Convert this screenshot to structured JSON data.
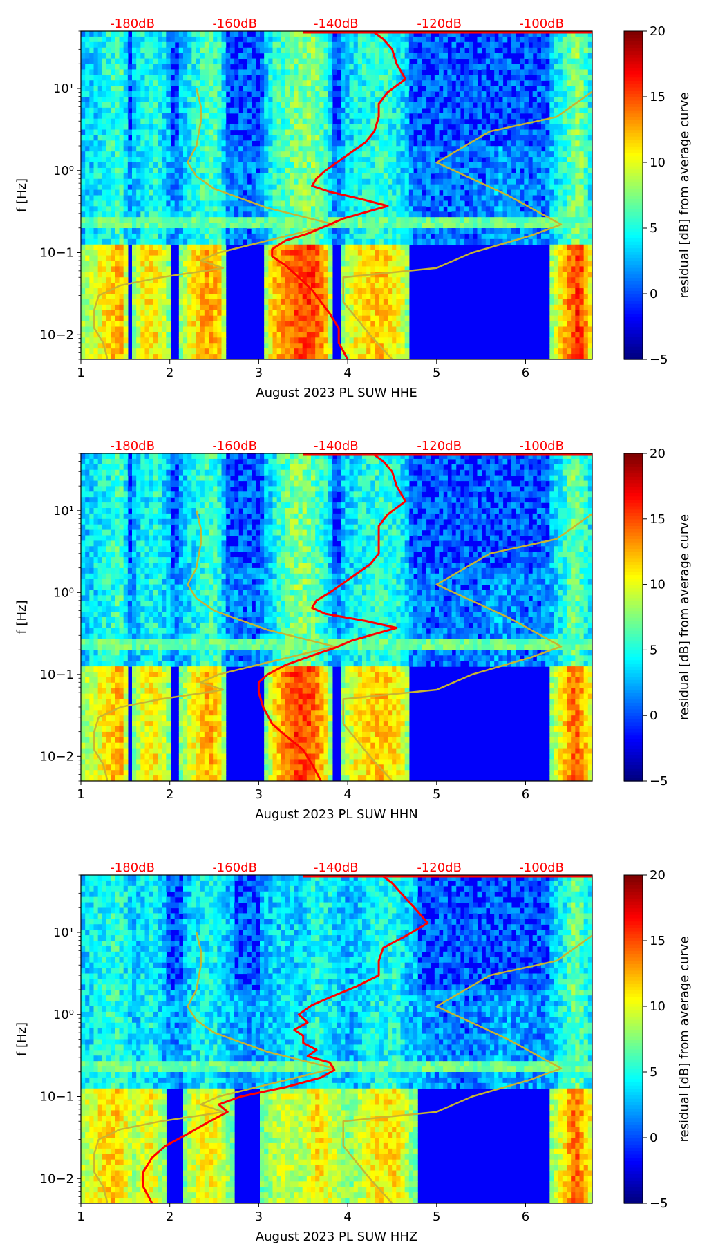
{
  "colors": {
    "noise_curve": "#ff0000",
    "model_curve": "#c8b432",
    "db_label": "#ff0000",
    "colormap": "jet"
  },
  "chart_data": [
    {
      "type": "heatmap",
      "xlabel": "August 2023 PL SUW  HHE",
      "ylabel": "f [Hz]",
      "xlim": [
        1,
        6.75
      ],
      "ylim": [
        0.005,
        50
      ],
      "yscale": "log",
      "x_ticks": [
        "1",
        "2",
        "3",
        "4",
        "5",
        "6"
      ],
      "y_ticks": [
        "10−2",
        "10−1",
        "10⁰",
        "10¹"
      ],
      "top_labels": [
        "-180dB",
        "-160dB",
        "-140dB",
        "-120dB",
        "-100dB"
      ],
      "colorbar": {
        "label": "residual [dB] from average curve",
        "range": [
          -5,
          20
        ],
        "ticks": [
          "−5",
          "0",
          "5",
          "10",
          "15",
          "20"
        ]
      },
      "noise_curve": [
        [
          4.0,
          0.005
        ],
        [
          3.9,
          0.008
        ],
        [
          3.9,
          0.012
        ],
        [
          3.8,
          0.018
        ],
        [
          3.7,
          0.025
        ],
        [
          3.6,
          0.035
        ],
        [
          3.45,
          0.05
        ],
        [
          3.3,
          0.07
        ],
        [
          3.15,
          0.09
        ],
        [
          3.15,
          0.11
        ],
        [
          3.3,
          0.14
        ],
        [
          3.55,
          0.17
        ],
        [
          3.75,
          0.21
        ],
        [
          3.95,
          0.26
        ],
        [
          4.2,
          0.31
        ],
        [
          4.45,
          0.37
        ],
        [
          4.15,
          0.45
        ],
        [
          3.8,
          0.55
        ],
        [
          3.6,
          0.65
        ],
        [
          3.65,
          0.8
        ],
        [
          3.75,
          1.0
        ],
        [
          3.9,
          1.3
        ],
        [
          4.05,
          1.7
        ],
        [
          4.2,
          2.2
        ],
        [
          4.3,
          3.0
        ],
        [
          4.35,
          4.5
        ],
        [
          4.35,
          6.5
        ],
        [
          4.45,
          9.0
        ],
        [
          4.65,
          13
        ],
        [
          4.55,
          20
        ],
        [
          4.5,
          30
        ],
        [
          4.4,
          40
        ],
        [
          4.3,
          48
        ]
      ],
      "model_curve": [
        [
          1.3,
          0.005
        ],
        [
          1.25,
          0.008
        ],
        [
          1.15,
          0.012
        ],
        [
          1.15,
          0.02
        ],
        [
          1.2,
          0.03
        ],
        [
          1.45,
          0.04
        ],
        [
          1.9,
          0.05
        ],
        [
          2.4,
          0.06
        ],
        [
          2.6,
          0.065
        ],
        [
          2.35,
          0.08
        ],
        [
          2.55,
          0.1
        ],
        [
          3.1,
          0.14
        ],
        [
          3.85,
          0.22
        ],
        [
          3.1,
          0.35
        ],
        [
          2.5,
          0.6
        ],
        [
          2.3,
          0.85
        ],
        [
          2.2,
          1.25
        ],
        [
          2.3,
          2.0
        ],
        [
          2.35,
          4.0
        ],
        [
          2.35,
          6.0
        ],
        [
          2.3,
          10.0
        ]
      ],
      "model_curve_2": [
        [
          4.5,
          0.005
        ],
        [
          4.25,
          0.01
        ],
        [
          3.95,
          0.025
        ],
        [
          3.95,
          0.05
        ],
        [
          5.0,
          0.065
        ],
        [
          5.4,
          0.1
        ],
        [
          6.05,
          0.16
        ],
        [
          6.4,
          0.22
        ],
        [
          5.8,
          0.5
        ],
        [
          5.0,
          1.25
        ],
        [
          5.6,
          3.0
        ],
        [
          6.35,
          4.5
        ],
        [
          6.8,
          10.0
        ]
      ]
    },
    {
      "type": "heatmap",
      "xlabel": "August 2023 PL SUW  HHN",
      "ylabel": "f [Hz]",
      "xlim": [
        1,
        6.75
      ],
      "ylim": [
        0.005,
        50
      ],
      "yscale": "log",
      "x_ticks": [
        "1",
        "2",
        "3",
        "4",
        "5",
        "6"
      ],
      "y_ticks": [
        "10−2",
        "10−1",
        "10⁰",
        "10¹"
      ],
      "top_labels": [
        "-180dB",
        "-160dB",
        "-140dB",
        "-120dB",
        "-100dB"
      ],
      "colorbar": {
        "label": "residual [dB] from average curve",
        "range": [
          -5,
          20
        ],
        "ticks": [
          "−5",
          "0",
          "5",
          "10",
          "15",
          "20"
        ]
      },
      "noise_curve": [
        [
          3.7,
          0.005
        ],
        [
          3.6,
          0.008
        ],
        [
          3.5,
          0.012
        ],
        [
          3.3,
          0.018
        ],
        [
          3.15,
          0.025
        ],
        [
          3.05,
          0.04
        ],
        [
          3.0,
          0.06
        ],
        [
          3.0,
          0.08
        ],
        [
          3.1,
          0.1
        ],
        [
          3.3,
          0.13
        ],
        [
          3.6,
          0.17
        ],
        [
          3.85,
          0.21
        ],
        [
          4.05,
          0.26
        ],
        [
          4.3,
          0.31
        ],
        [
          4.55,
          0.37
        ],
        [
          4.2,
          0.45
        ],
        [
          3.75,
          0.55
        ],
        [
          3.6,
          0.65
        ],
        [
          3.65,
          0.8
        ],
        [
          3.8,
          1.0
        ],
        [
          3.95,
          1.3
        ],
        [
          4.1,
          1.7
        ],
        [
          4.25,
          2.2
        ],
        [
          4.35,
          3.0
        ],
        [
          4.35,
          4.5
        ],
        [
          4.35,
          6.5
        ],
        [
          4.45,
          9.0
        ],
        [
          4.65,
          13
        ],
        [
          4.55,
          20
        ],
        [
          4.5,
          30
        ],
        [
          4.4,
          40
        ],
        [
          4.3,
          48
        ]
      ],
      "model_curve": [
        [
          1.3,
          0.005
        ],
        [
          1.25,
          0.008
        ],
        [
          1.15,
          0.012
        ],
        [
          1.15,
          0.02
        ],
        [
          1.2,
          0.03
        ],
        [
          1.45,
          0.04
        ],
        [
          1.9,
          0.05
        ],
        [
          2.4,
          0.06
        ],
        [
          2.6,
          0.065
        ],
        [
          2.35,
          0.08
        ],
        [
          2.55,
          0.1
        ],
        [
          3.1,
          0.14
        ],
        [
          3.85,
          0.22
        ],
        [
          3.1,
          0.35
        ],
        [
          2.5,
          0.6
        ],
        [
          2.3,
          0.85
        ],
        [
          2.2,
          1.25
        ],
        [
          2.3,
          2.0
        ],
        [
          2.35,
          4.0
        ],
        [
          2.35,
          6.0
        ],
        [
          2.3,
          10.0
        ]
      ],
      "model_curve_2": [
        [
          4.5,
          0.005
        ],
        [
          4.25,
          0.01
        ],
        [
          3.95,
          0.025
        ],
        [
          3.95,
          0.05
        ],
        [
          5.0,
          0.065
        ],
        [
          5.4,
          0.1
        ],
        [
          6.05,
          0.16
        ],
        [
          6.4,
          0.22
        ],
        [
          5.8,
          0.5
        ],
        [
          5.0,
          1.25
        ],
        [
          5.6,
          3.0
        ],
        [
          6.35,
          4.5
        ],
        [
          6.8,
          10.0
        ]
      ]
    },
    {
      "type": "heatmap",
      "xlabel": "August 2023 PL SUW  HHZ",
      "ylabel": "f [Hz]",
      "xlim": [
        1,
        6.75
      ],
      "ylim": [
        0.005,
        50
      ],
      "yscale": "log",
      "x_ticks": [
        "1",
        "2",
        "3",
        "4",
        "5",
        "6"
      ],
      "y_ticks": [
        "10−2",
        "10−1",
        "10⁰",
        "10¹"
      ],
      "top_labels": [
        "-180dB",
        "-160dB",
        "-140dB",
        "-120dB",
        "-100dB"
      ],
      "colorbar": {
        "label": "residual [dB] from average curve",
        "range": [
          -5,
          20
        ],
        "ticks": [
          "−5",
          "0",
          "5",
          "10",
          "15",
          "20"
        ]
      },
      "noise_curve": [
        [
          1.8,
          0.005
        ],
        [
          1.7,
          0.008
        ],
        [
          1.7,
          0.012
        ],
        [
          1.8,
          0.018
        ],
        [
          1.95,
          0.025
        ],
        [
          2.2,
          0.035
        ],
        [
          2.45,
          0.05
        ],
        [
          2.65,
          0.065
        ],
        [
          2.55,
          0.08
        ],
        [
          2.8,
          0.1
        ],
        [
          3.3,
          0.13
        ],
        [
          3.7,
          0.17
        ],
        [
          3.85,
          0.21
        ],
        [
          3.8,
          0.26
        ],
        [
          3.55,
          0.31
        ],
        [
          3.65,
          0.37
        ],
        [
          3.5,
          0.45
        ],
        [
          3.5,
          0.55
        ],
        [
          3.4,
          0.65
        ],
        [
          3.55,
          0.8
        ],
        [
          3.45,
          1.0
        ],
        [
          3.6,
          1.3
        ],
        [
          3.85,
          1.7
        ],
        [
          4.1,
          2.2
        ],
        [
          4.35,
          3.0
        ],
        [
          4.35,
          4.5
        ],
        [
          4.4,
          6.5
        ],
        [
          4.65,
          9.0
        ],
        [
          4.9,
          13
        ],
        [
          4.75,
          20
        ],
        [
          4.6,
          30
        ],
        [
          4.5,
          40
        ],
        [
          4.4,
          48
        ]
      ],
      "model_curve": [
        [
          1.3,
          0.005
        ],
        [
          1.25,
          0.008
        ],
        [
          1.15,
          0.012
        ],
        [
          1.15,
          0.02
        ],
        [
          1.2,
          0.03
        ],
        [
          1.45,
          0.04
        ],
        [
          1.9,
          0.05
        ],
        [
          2.4,
          0.06
        ],
        [
          2.6,
          0.065
        ],
        [
          2.35,
          0.08
        ],
        [
          2.55,
          0.1
        ],
        [
          3.1,
          0.14
        ],
        [
          3.85,
          0.22
        ],
        [
          3.1,
          0.35
        ],
        [
          2.5,
          0.6
        ],
        [
          2.3,
          0.85
        ],
        [
          2.2,
          1.25
        ],
        [
          2.3,
          2.0
        ],
        [
          2.35,
          4.0
        ],
        [
          2.35,
          6.0
        ],
        [
          2.3,
          10.0
        ]
      ],
      "model_curve_2": [
        [
          4.5,
          0.005
        ],
        [
          4.25,
          0.01
        ],
        [
          3.95,
          0.025
        ],
        [
          3.95,
          0.05
        ],
        [
          5.0,
          0.065
        ],
        [
          5.4,
          0.1
        ],
        [
          6.05,
          0.16
        ],
        [
          6.4,
          0.22
        ],
        [
          5.8,
          0.5
        ],
        [
          5.0,
          1.25
        ],
        [
          5.6,
          3.0
        ],
        [
          6.35,
          4.5
        ],
        [
          6.8,
          10.0
        ]
      ]
    }
  ]
}
